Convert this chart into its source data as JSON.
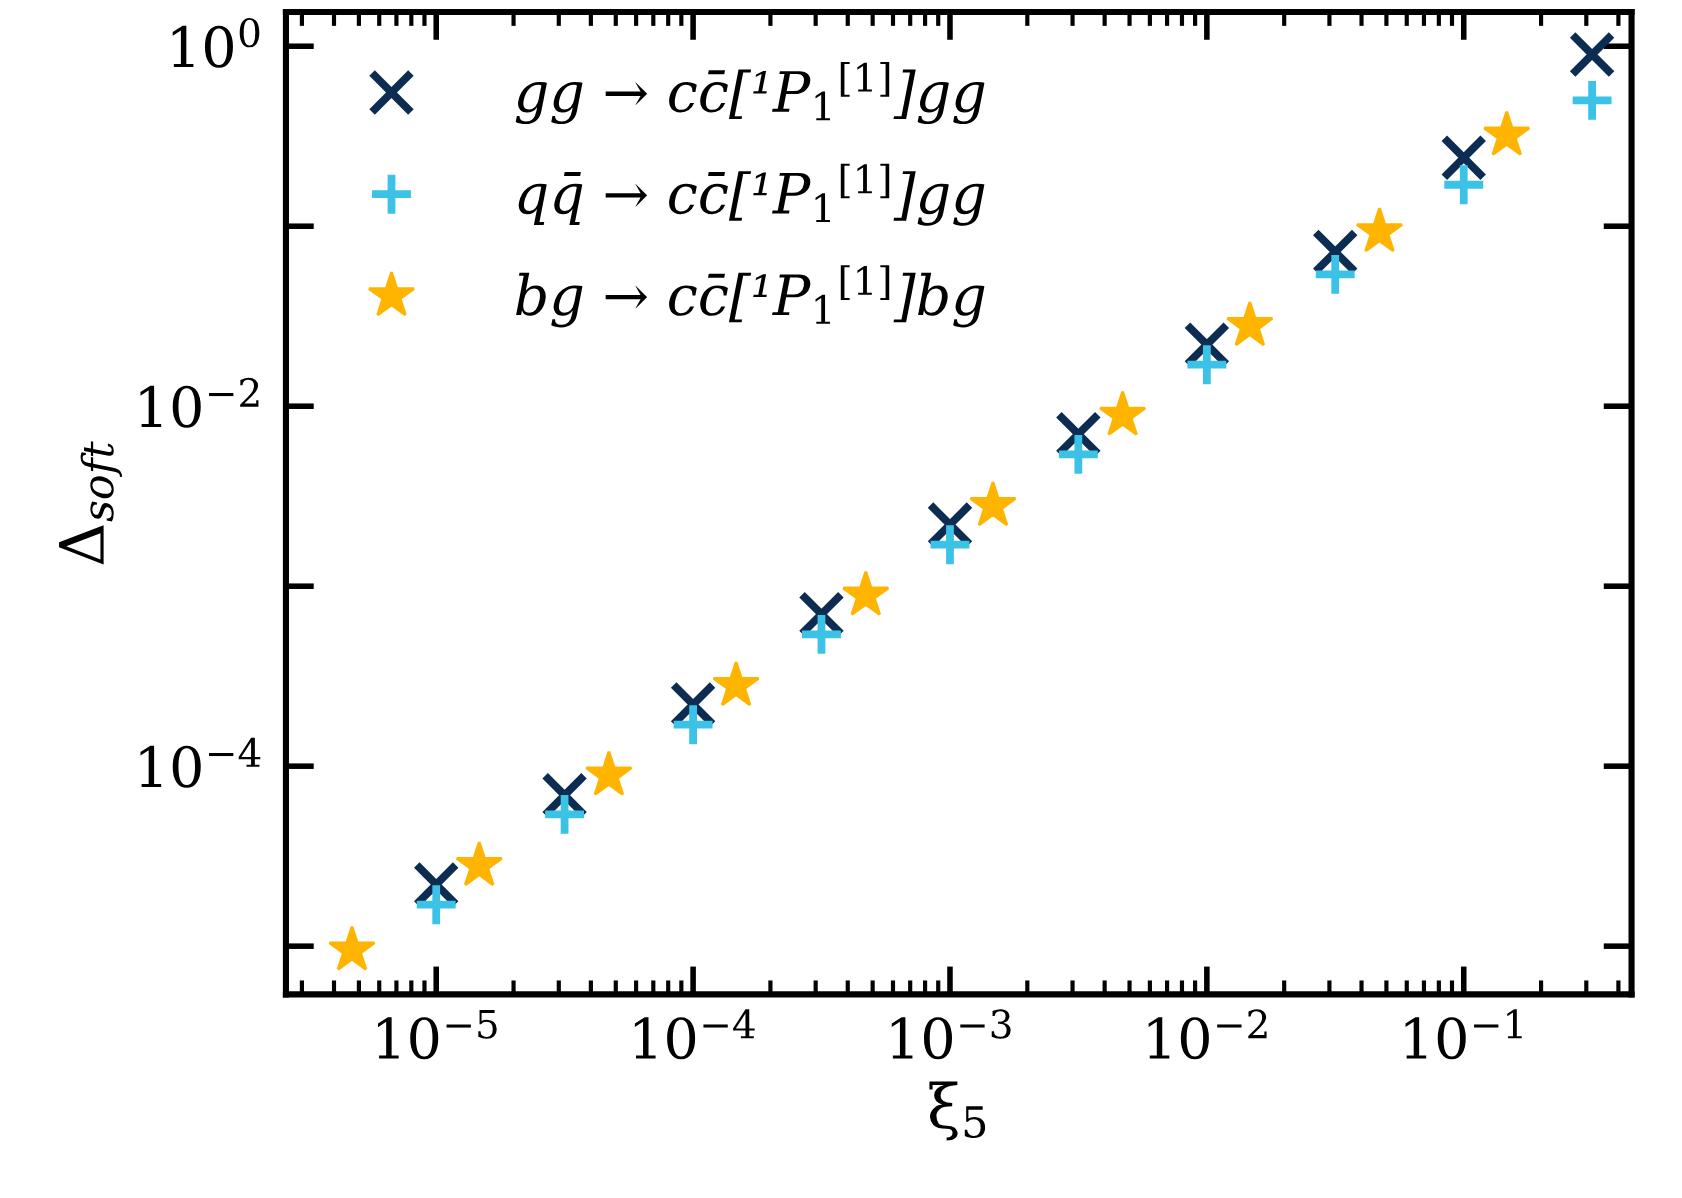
{
  "chart_data": {
    "type": "scatter",
    "xlabel": "ξ$_{5}$",
    "ylabel": "Δ$_{soft}$",
    "log": "xy",
    "legend": "top left",
    "grid": false,
    "xlim": [
      2.6e-06,
      0.45
    ],
    "ylim": [
      5.4e-06,
      1.55
    ],
    "xticks": [
      {
        "value": 1e-05,
        "label": "10$^{−5}$"
      },
      {
        "value": 0.0001,
        "label": "10$^{−4}$"
      },
      {
        "value": 0.001,
        "label": "10$^{−3}$"
      },
      {
        "value": 0.01,
        "label": "10$^{−2}$"
      },
      {
        "value": 0.1,
        "label": "10$^{−1}$"
      }
    ],
    "yticks": [
      {
        "value": 1e-05,
        "label": null
      },
      {
        "value": 0.0001,
        "label": "10$^{−4}$"
      },
      {
        "value": 0.001,
        "label": null
      },
      {
        "value": 0.01,
        "label": "10$^{−2}$"
      },
      {
        "value": 0.1,
        "label": null
      },
      {
        "value": 1,
        "label": "10$^{0}$"
      }
    ],
    "series": [
      {
        "name": "gg → cc̄[¹P$_{1}$$^{[1]}$]gg",
        "color": "#0c2c52",
        "marker": "cross",
        "x": [
          1e-05,
          3.16e-05,
          0.0001,
          0.000316,
          0.001,
          0.00316,
          0.01,
          0.0316,
          0.1,
          0.316
        ],
        "values": [
          2.2e-05,
          6.9e-05,
          0.00022,
          0.0007,
          0.0022,
          0.007,
          0.022,
          0.072,
          0.24,
          0.9
        ]
      },
      {
        "name": "qq̄ → cc̄[¹P$_{1}$$^{[1]}$]gg",
        "color": "#3bc2e6",
        "marker": "plus",
        "x": [
          1e-05,
          3.16e-05,
          0.0001,
          0.000316,
          0.001,
          0.00316,
          0.01,
          0.0316,
          0.1,
          0.316
        ],
        "values": [
          1.7e-05,
          5.4e-05,
          0.00017,
          0.00054,
          0.0017,
          0.0054,
          0.017,
          0.054,
          0.17,
          0.5
        ]
      },
      {
        "name": "bg → cc̄[¹P$_{1}$$^{[1]}$]bg",
        "color": "#ffb400",
        "marker": "star",
        "x": [
          4.7e-06,
          1.47e-05,
          4.7e-05,
          0.000147,
          0.00047,
          0.00147,
          0.0047,
          0.0147,
          0.047,
          0.147
        ],
        "values": [
          9.5e-06,
          2.8e-05,
          8.9e-05,
          0.00028,
          0.00089,
          0.0028,
          0.0089,
          0.028,
          0.093,
          0.32
        ]
      }
    ]
  }
}
